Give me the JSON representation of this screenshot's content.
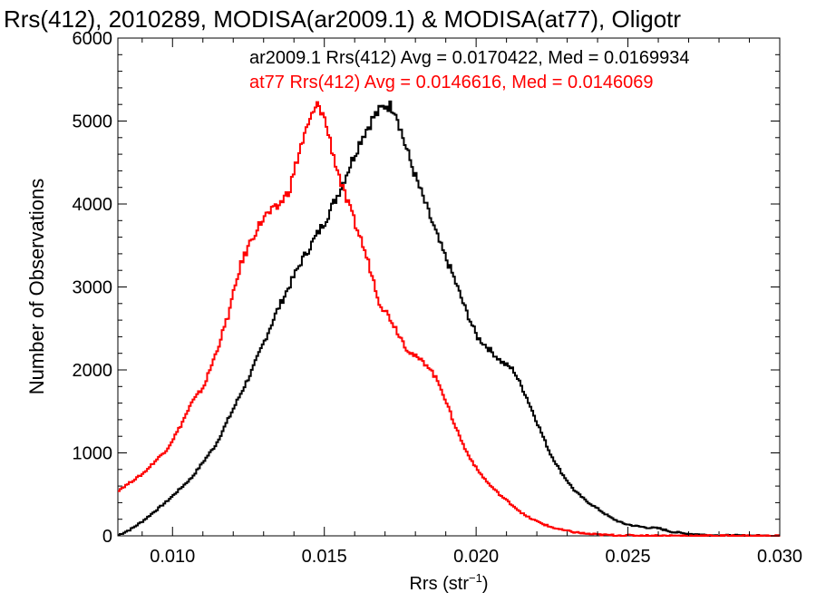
{
  "chart_data": {
    "type": "line",
    "step": true,
    "title": "Rrs(412), 2010289, MODISA(ar2009.1) & MODISA(at77), Oligotr",
    "xlabel_main": "Rrs (str",
    "xlabel_sup": "−1",
    "xlabel_close": ")",
    "ylabel": "Number of Observations",
    "xlim": [
      0.0082,
      0.03
    ],
    "ylim": [
      0,
      6000
    ],
    "x_ticks": [
      {
        "value": 0.01,
        "label": "0.010"
      },
      {
        "value": 0.015,
        "label": "0.015"
      },
      {
        "value": 0.02,
        "label": "0.020"
      },
      {
        "value": 0.025,
        "label": "0.025"
      },
      {
        "value": 0.03,
        "label": "0.030"
      }
    ],
    "y_ticks": [
      {
        "value": 0,
        "label": "0"
      },
      {
        "value": 1000,
        "label": "1000"
      },
      {
        "value": 2000,
        "label": "2000"
      },
      {
        "value": 3000,
        "label": "3000"
      },
      {
        "value": 4000,
        "label": "4000"
      },
      {
        "value": 5000,
        "label": "5000"
      },
      {
        "value": 6000,
        "label": "6000"
      }
    ],
    "grid": false,
    "legend_position": "top-right",
    "annotations": [
      {
        "text": "ar2009.1 Rrs(412) Avg = 0.0170422, Med = 0.0169934",
        "color": "#000000"
      },
      {
        "text": "at77 Rrs(412) Avg = 0.0146616, Med = 0.0146069",
        "color": "#ff0000"
      }
    ],
    "series": [
      {
        "name": "ar2009.1",
        "color": "#000000",
        "points": [
          [
            0.0082,
            10
          ],
          [
            0.0086,
            80
          ],
          [
            0.009,
            180
          ],
          [
            0.0094,
            300
          ],
          [
            0.0098,
            420
          ],
          [
            0.0102,
            560
          ],
          [
            0.0106,
            700
          ],
          [
            0.011,
            900
          ],
          [
            0.0114,
            1100
          ],
          [
            0.0118,
            1400
          ],
          [
            0.0122,
            1700
          ],
          [
            0.0126,
            2000
          ],
          [
            0.013,
            2350
          ],
          [
            0.0134,
            2700
          ],
          [
            0.0138,
            3000
          ],
          [
            0.0142,
            3300
          ],
          [
            0.0146,
            3550
          ],
          [
            0.015,
            3800
          ],
          [
            0.0154,
            4100
          ],
          [
            0.0158,
            4450
          ],
          [
            0.0162,
            4800
          ],
          [
            0.0166,
            5050
          ],
          [
            0.017,
            5200
          ],
          [
            0.0173,
            5150
          ],
          [
            0.0176,
            4750
          ],
          [
            0.018,
            4300
          ],
          [
            0.0184,
            3900
          ],
          [
            0.0188,
            3500
          ],
          [
            0.0192,
            3150
          ],
          [
            0.0196,
            2750
          ],
          [
            0.02,
            2400
          ],
          [
            0.0204,
            2250
          ],
          [
            0.0208,
            2100
          ],
          [
            0.0212,
            2000
          ],
          [
            0.0216,
            1700
          ],
          [
            0.022,
            1350
          ],
          [
            0.0224,
            1000
          ],
          [
            0.0228,
            750
          ],
          [
            0.0232,
            550
          ],
          [
            0.0236,
            420
          ],
          [
            0.024,
            320
          ],
          [
            0.0244,
            220
          ],
          [
            0.0248,
            150
          ],
          [
            0.0252,
            120
          ],
          [
            0.0256,
            100
          ],
          [
            0.026,
            90
          ],
          [
            0.0264,
            50
          ],
          [
            0.0268,
            30
          ],
          [
            0.0272,
            20
          ],
          [
            0.0276,
            10
          ],
          [
            0.028,
            5
          ],
          [
            0.029,
            2
          ],
          [
            0.03,
            0
          ]
        ]
      },
      {
        "name": "at77",
        "color": "#ff0000",
        "points": [
          [
            0.0082,
            550
          ],
          [
            0.0086,
            650
          ],
          [
            0.009,
            750
          ],
          [
            0.0094,
            900
          ],
          [
            0.0098,
            1050
          ],
          [
            0.0102,
            1300
          ],
          [
            0.0106,
            1600
          ],
          [
            0.011,
            1800
          ],
          [
            0.0114,
            2200
          ],
          [
            0.0118,
            2650
          ],
          [
            0.0122,
            3250
          ],
          [
            0.0126,
            3600
          ],
          [
            0.013,
            3850
          ],
          [
            0.0134,
            3950
          ],
          [
            0.0138,
            4150
          ],
          [
            0.0142,
            4700
          ],
          [
            0.0146,
            5100
          ],
          [
            0.0148,
            5200
          ],
          [
            0.015,
            5000
          ],
          [
            0.0153,
            4550
          ],
          [
            0.0156,
            4150
          ],
          [
            0.0159,
            3850
          ],
          [
            0.0162,
            3550
          ],
          [
            0.0165,
            3200
          ],
          [
            0.0168,
            2800
          ],
          [
            0.0171,
            2650
          ],
          [
            0.0174,
            2450
          ],
          [
            0.0177,
            2250
          ],
          [
            0.018,
            2150
          ],
          [
            0.0184,
            2050
          ],
          [
            0.0188,
            1800
          ],
          [
            0.0192,
            1400
          ],
          [
            0.0196,
            1050
          ],
          [
            0.02,
            800
          ],
          [
            0.0204,
            620
          ],
          [
            0.0208,
            480
          ],
          [
            0.0212,
            360
          ],
          [
            0.0216,
            240
          ],
          [
            0.022,
            170
          ],
          [
            0.0224,
            110
          ],
          [
            0.0228,
            70
          ],
          [
            0.0232,
            45
          ],
          [
            0.0236,
            25
          ],
          [
            0.024,
            15
          ],
          [
            0.0244,
            8
          ],
          [
            0.025,
            5
          ],
          [
            0.026,
            2
          ],
          [
            0.03,
            0
          ]
        ]
      }
    ]
  }
}
